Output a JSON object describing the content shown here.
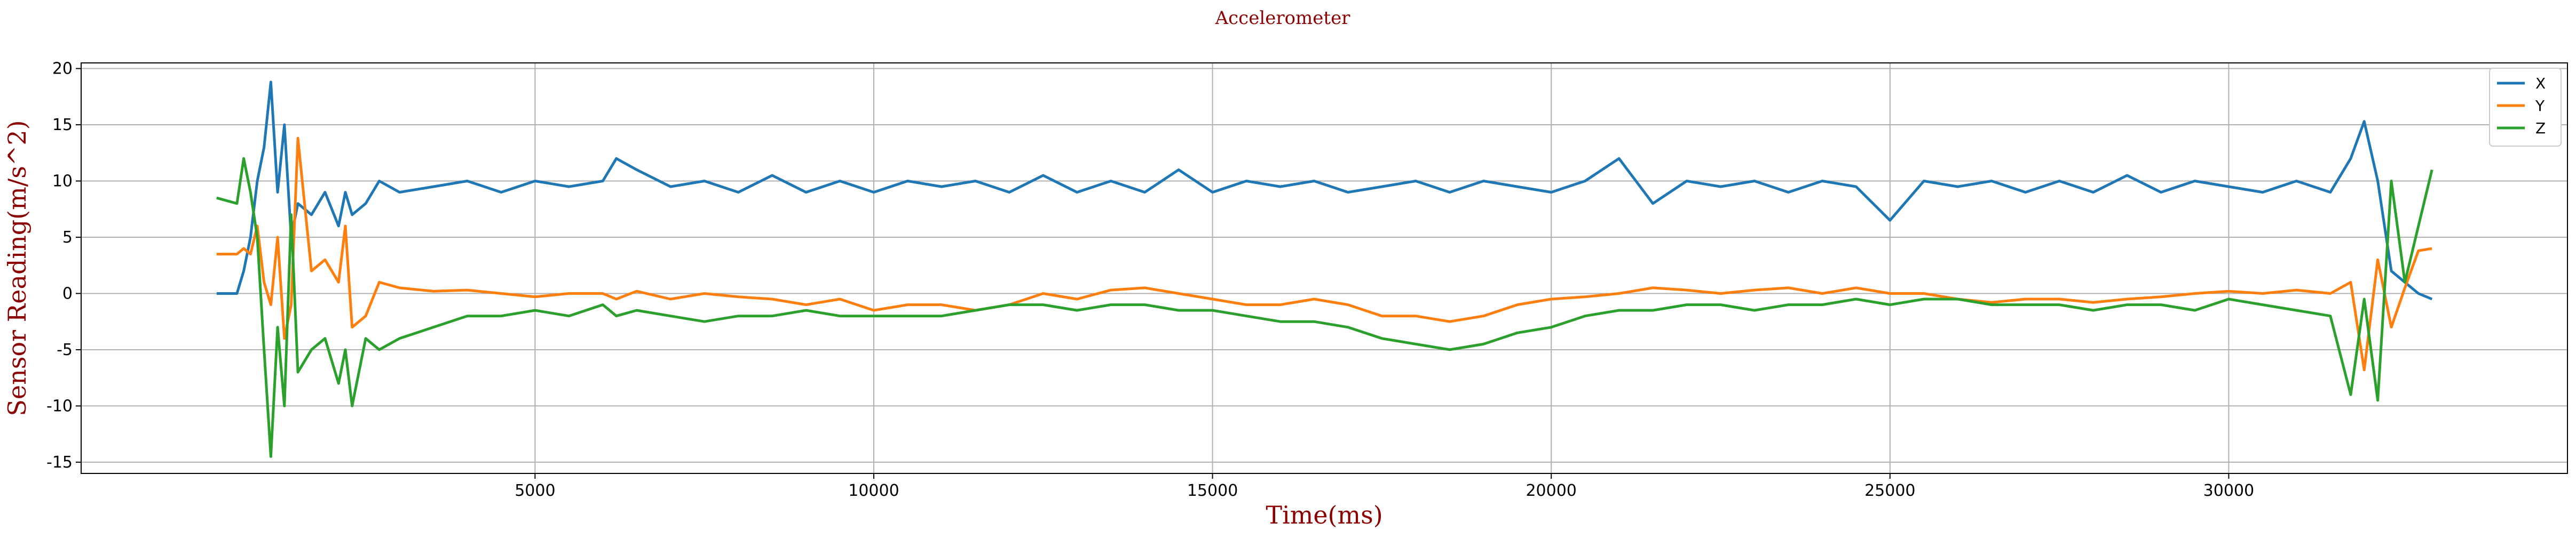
{
  "chart_data": {
    "type": "line",
    "title": "Accelerometer",
    "xlabel": "Time(ms)",
    "ylabel": "Sensor Reading(m/s^2)",
    "xlim": [
      -1700,
      35000
    ],
    "ylim": [
      -16,
      20.5
    ],
    "xticks": [
      5000,
      10000,
      15000,
      20000,
      25000,
      30000
    ],
    "yticks": [
      -15,
      -10,
      -5,
      0,
      5,
      10,
      15,
      20
    ],
    "grid": true,
    "legend_position": "top-right",
    "x": [
      300,
      600,
      700,
      800,
      900,
      1000,
      1100,
      1200,
      1300,
      1400,
      1500,
      1700,
      1900,
      2100,
      2200,
      2300,
      2500,
      2700,
      3000,
      3500,
      4000,
      4500,
      5000,
      5500,
      6000,
      6200,
      6500,
      7000,
      7500,
      8000,
      8500,
      9000,
      9500,
      10000,
      10500,
      11000,
      11500,
      12000,
      12500,
      13000,
      13500,
      14000,
      14500,
      15000,
      15500,
      16000,
      16500,
      17000,
      17500,
      18000,
      18500,
      19000,
      19500,
      20000,
      20500,
      21000,
      21500,
      22000,
      22500,
      23000,
      23500,
      24000,
      24500,
      25000,
      25500,
      26000,
      26500,
      27000,
      27500,
      28000,
      28500,
      29000,
      29500,
      30000,
      30500,
      31000,
      31500,
      31800,
      32000,
      32200,
      32400,
      32600,
      32800,
      33000
    ],
    "series": [
      {
        "name": "X",
        "color": "#1f77b4",
        "values": [
          0,
          0,
          2,
          5,
          10,
          13,
          18.8,
          9,
          15,
          5,
          8,
          7,
          9,
          6,
          9,
          7,
          8,
          10,
          9,
          9.5,
          10,
          9,
          10,
          9.5,
          10,
          12,
          11,
          9.5,
          10,
          9,
          10.5,
          9,
          10,
          9,
          10,
          9.5,
          10,
          9,
          10.5,
          9,
          10,
          9,
          11,
          9,
          10,
          9.5,
          10,
          9,
          9.5,
          10,
          9,
          10,
          9.5,
          9,
          10,
          12,
          8,
          10,
          9.5,
          10,
          9,
          10,
          9.5,
          6.5,
          10,
          9.5,
          10,
          9,
          10,
          9,
          10.5,
          9,
          10,
          9.5,
          9,
          10,
          9,
          12,
          15.3,
          10,
          2,
          1,
          0,
          -0.5
        ]
      },
      {
        "name": "Y",
        "color": "#ff7f0e",
        "values": [
          3.5,
          3.5,
          4,
          3.5,
          6,
          1,
          -1,
          5,
          -4,
          -1,
          13.8,
          2,
          3,
          1,
          6,
          -3,
          -2,
          1,
          0.5,
          0.2,
          0.3,
          0,
          -0.3,
          0,
          0,
          -0.5,
          0.2,
          -0.5,
          0,
          -0.3,
          -0.5,
          -1,
          -0.5,
          -1.5,
          -1,
          -1,
          -1.5,
          -1,
          0,
          -0.5,
          0.3,
          0.5,
          0,
          -0.5,
          -1,
          -1,
          -0.5,
          -1,
          -2,
          -2,
          -2.5,
          -2,
          -1,
          -0.5,
          -0.3,
          0,
          0.5,
          0.3,
          0,
          0.3,
          0.5,
          0,
          0.5,
          0,
          0,
          -0.5,
          -0.8,
          -0.5,
          -0.5,
          -0.8,
          -0.5,
          -0.3,
          0,
          0.2,
          0,
          0.3,
          0,
          1,
          -6.8,
          3,
          -3,
          0.5,
          3.8,
          4
        ]
      },
      {
        "name": "Z",
        "color": "#2ca02c",
        "values": [
          8.5,
          8,
          12,
          9,
          5,
          -5,
          -14.5,
          -3,
          -10,
          7,
          -7,
          -5,
          -4,
          -8,
          -5,
          -10,
          -4,
          -5,
          -4,
          -3,
          -2,
          -2,
          -1.5,
          -2,
          -1,
          -2,
          -1.5,
          -2,
          -2.5,
          -2,
          -2,
          -1.5,
          -2,
          -2,
          -2,
          -2,
          -1.5,
          -1,
          -1,
          -1.5,
          -1,
          -1,
          -1.5,
          -1.5,
          -2,
          -2.5,
          -2.5,
          -3,
          -4,
          -4.5,
          -5,
          -4.5,
          -3.5,
          -3,
          -2,
          -1.5,
          -1.5,
          -1,
          -1,
          -1.5,
          -1,
          -1,
          -0.5,
          -1,
          -0.5,
          -0.5,
          -1,
          -1,
          -1,
          -1.5,
          -1,
          -1,
          -1.5,
          -0.5,
          -1,
          -1.5,
          -2,
          -9,
          -0.5,
          -9.5,
          10,
          1,
          6,
          11
        ]
      }
    ]
  }
}
